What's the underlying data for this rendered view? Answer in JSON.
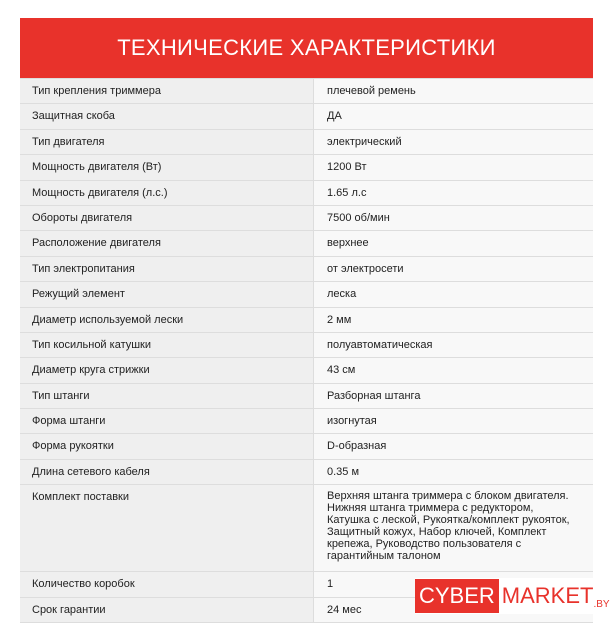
{
  "header": {
    "title": "ТЕХНИЧЕСКИЕ ХАРАКТЕРИСТИКИ"
  },
  "table": {
    "rows": [
      [
        "Тип крепления триммера",
        "плечевой ремень"
      ],
      [
        "Защитная скоба",
        "ДА"
      ],
      [
        "Тип двигателя",
        "электрический"
      ],
      [
        "Мощность двигателя (Вт)",
        "1200 Вт"
      ],
      [
        "Мощность двигателя (л.с.)",
        "1.65 л.с"
      ],
      [
        "Обороты двигателя",
        "7500 об/мин"
      ],
      [
        "Расположение двигателя",
        "верхнее"
      ],
      [
        "Тип электропитания",
        "от электросети"
      ],
      [
        "Режущий элемент",
        "леска"
      ],
      [
        "Диаметр используемой лески",
        "2 мм"
      ],
      [
        "Тип косильной катушки",
        "полуавтоматическая"
      ],
      [
        "Диаметр круга стрижки",
        "43 см"
      ],
      [
        "Тип штанги",
        "Разборная штанга"
      ],
      [
        "Форма штанги",
        "изогнутая"
      ],
      [
        "Форма рукоятки",
        "D-образная"
      ],
      [
        "Длина сетевого кабеля",
        "0.35 м"
      ],
      [
        "Комплект поставки",
        [
          "Верхняя штанга триммера с блоком двигателя.",
          "Нижняя штанга триммера с редуктором,",
          "Катушка с леской, Рукоятка/комплект рукояток,",
          "Защитный кожух, Набор ключей, Комплект",
          "крепежа, Руководство пользователя с",
          "гарантийным талоном"
        ]
      ],
      [
        "Количество коробок",
        "1"
      ],
      [
        "Срок гарантии",
        "24 мес"
      ]
    ]
  },
  "logo": {
    "cyber": "CYBER",
    "market": "MARKET",
    "domain": ".BY"
  }
}
